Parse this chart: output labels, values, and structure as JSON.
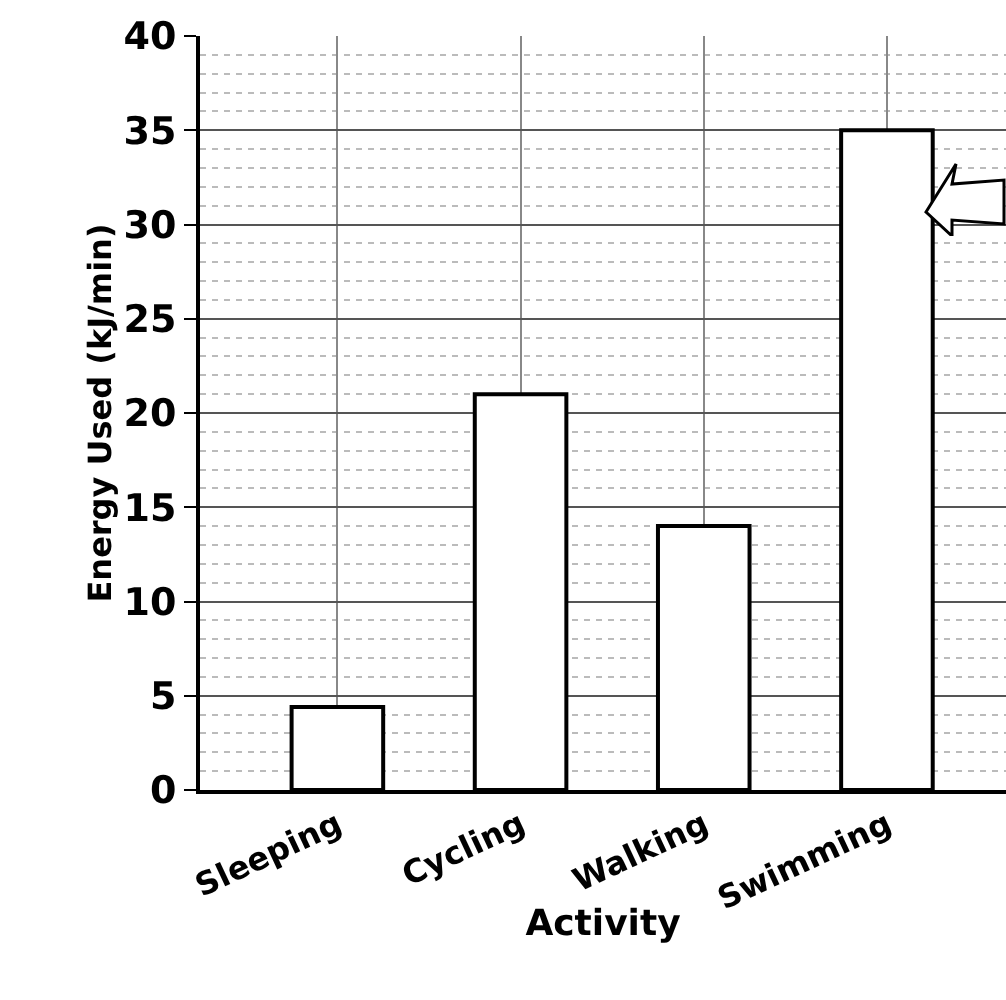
{
  "chart_data": {
    "type": "bar",
    "xlabel": "Activity",
    "ylabel": "Energy Used (kJ/min)",
    "categories": [
      "Sleeping",
      "Cycling",
      "Walking",
      "Swimming"
    ],
    "values": [
      4.4,
      21,
      14,
      35
    ],
    "color": "#ffffff",
    "ylim": [
      0,
      40
    ],
    "yticks": [
      0,
      5,
      10,
      15,
      20,
      25,
      30,
      35,
      40
    ],
    "grid": true
  }
}
